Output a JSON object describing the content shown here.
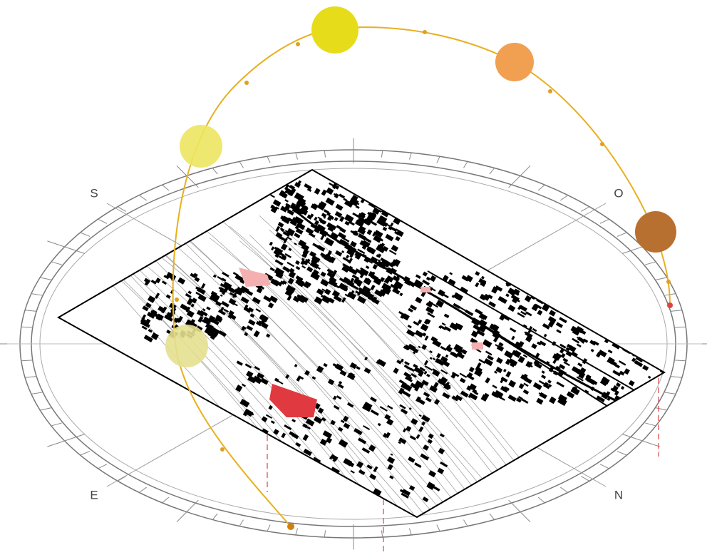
{
  "compass": {
    "south": "S",
    "west": "O",
    "east": "E",
    "north": "N"
  }
}
